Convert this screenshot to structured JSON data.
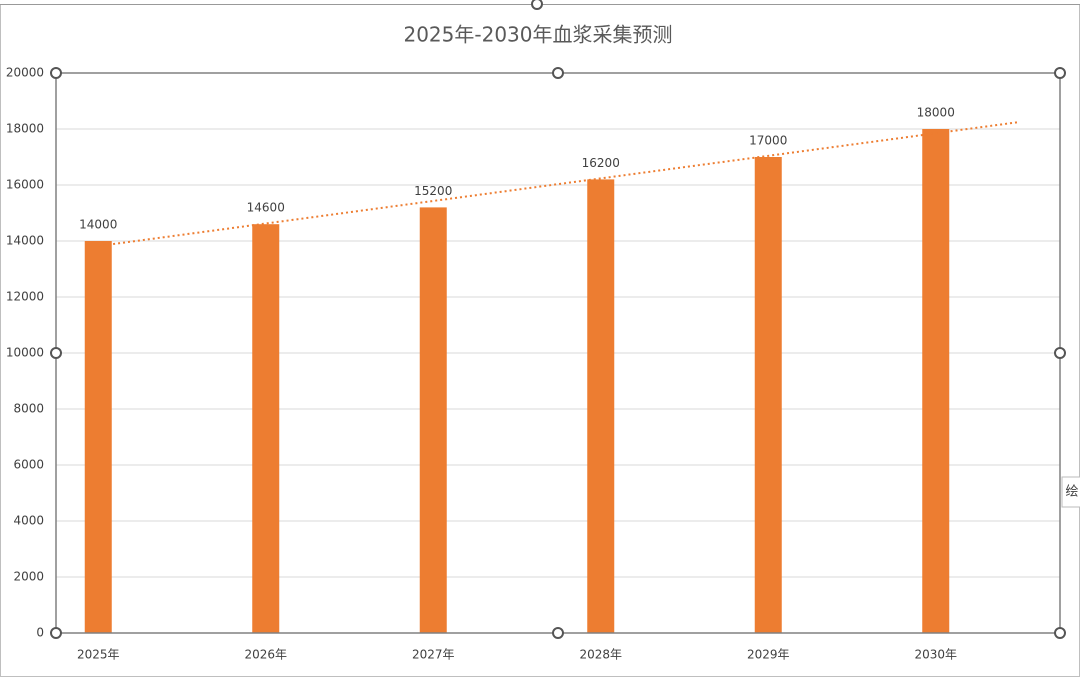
{
  "chart_data": {
    "type": "bar",
    "title": "2025年-2030年血浆采集预测",
    "categories": [
      "2025年",
      "2026年",
      "2027年",
      "2028年",
      "2029年",
      "2030年"
    ],
    "values": [
      14000,
      14600,
      15200,
      16200,
      17000,
      18000
    ],
    "color": "#ed7d31",
    "ylim": [
      0,
      20000
    ],
    "yticks": [
      0,
      2000,
      4000,
      6000,
      8000,
      10000,
      12000,
      14000,
      16000,
      18000,
      20000
    ],
    "grid": true,
    "data_labels": true,
    "trendline": "linear",
    "side_tab": "绘"
  }
}
